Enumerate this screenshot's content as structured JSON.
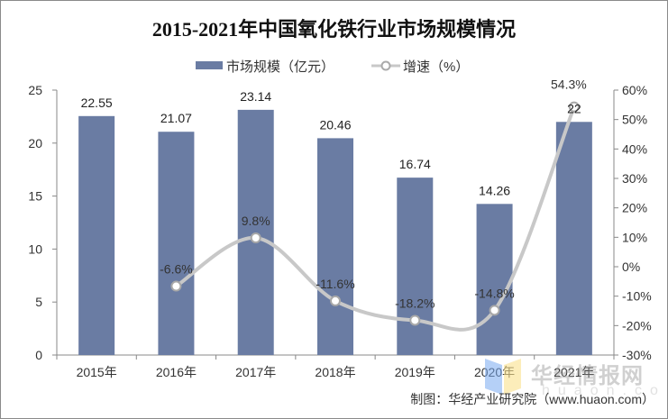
{
  "chart_data": {
    "type": "bar+line",
    "title": "2015-2021年中国氧化铁行业市场规模情况",
    "categories": [
      "2015年",
      "2016年",
      "2017年",
      "2018年",
      "2019年",
      "2020年",
      "2021年"
    ],
    "series": [
      {
        "name": "市场规模（亿元）",
        "type": "bar",
        "axis": "left",
        "color": "#6a7ca3",
        "values": [
          22.55,
          21.07,
          23.14,
          20.46,
          16.74,
          14.26,
          22
        ],
        "labels": [
          "22.55",
          "21.07",
          "23.14",
          "20.46",
          "16.74",
          "14.26",
          "22"
        ]
      },
      {
        "name": "增速（%）",
        "type": "line",
        "axis": "right",
        "color": "#c8c8c8",
        "smooth": true,
        "values": [
          null,
          -6.6,
          9.8,
          -11.6,
          -18.2,
          -14.8,
          54.3
        ],
        "labels": [
          "",
          "-6.6%",
          "9.8%",
          "-11.6%",
          "-18.2%",
          "-14.8%",
          "54.3%"
        ]
      }
    ],
    "left_axis": {
      "ylim": [
        0,
        25
      ],
      "ticks": [
        "0",
        "5",
        "10",
        "15",
        "20",
        "25"
      ]
    },
    "right_axis": {
      "ylim": [
        -30,
        60
      ],
      "ticks": [
        "-30%",
        "-20%",
        "-10%",
        "0%",
        "10%",
        "20%",
        "30%",
        "40%",
        "50%",
        "60%"
      ]
    },
    "grid": false,
    "legend": "top-center"
  },
  "source": "制图：华经产业研究院（www.huaon.com）",
  "watermark": {
    "text": "华经情报网",
    "subtext": "huaon.com"
  }
}
